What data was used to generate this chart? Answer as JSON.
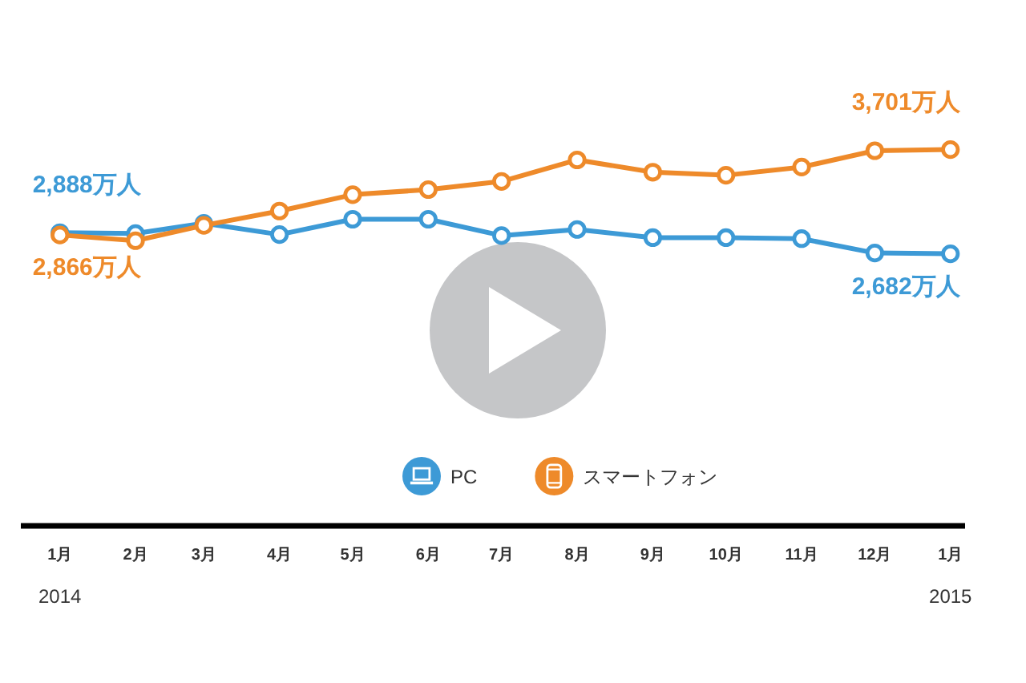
{
  "chart_data": {
    "type": "line",
    "x": [
      "2014-01",
      "2014-02",
      "2014-03",
      "2014-04",
      "2014-05",
      "2014-06",
      "2014-07",
      "2014-08",
      "2014-09",
      "2014-10",
      "2014-11",
      "2014-12",
      "2015-01"
    ],
    "xlim": [
      "2013-12-16",
      "2015-01-07"
    ],
    "xticks": [
      {
        "value": "2014-01",
        "label": "1月"
      },
      {
        "value": "2014-02",
        "label": "2月"
      },
      {
        "value": "2014-03",
        "label": "3月"
      },
      {
        "value": "2014-04",
        "label": "4月"
      },
      {
        "value": "2014-05",
        "label": "5月"
      },
      {
        "value": "2014-06",
        "label": "6月"
      },
      {
        "value": "2014-07",
        "label": "7月"
      },
      {
        "value": "2014-08",
        "label": "8月"
      },
      {
        "value": "2014-09",
        "label": "9月"
      },
      {
        "value": "2014-10",
        "label": "10月"
      },
      {
        "value": "2014-11",
        "label": "11月"
      },
      {
        "value": "2014-12",
        "label": "12月"
      },
      {
        "value": "2015-01",
        "label": "1月"
      }
    ],
    "series": [
      {
        "name": "PC",
        "color": "#3d9ad6",
        "values": [
          2888,
          2880,
          2980,
          2870,
          3020,
          3020,
          2860,
          2920,
          2840,
          2840,
          2830,
          2690,
          2682
        ],
        "value_labels": [
          "2,888万人",
          null,
          null,
          null,
          null,
          null,
          null,
          null,
          null,
          null,
          null,
          null,
          "2,682万人"
        ]
      },
      {
        "name": "スマートフォン",
        "color": "#ee8a2a",
        "values": [
          2866,
          2810,
          2960,
          3100,
          3260,
          3310,
          3390,
          3600,
          3480,
          3450,
          3530,
          3690,
          3701
        ],
        "value_labels": [
          "2,866万人",
          null,
          null,
          null,
          null,
          null,
          null,
          null,
          null,
          null,
          null,
          null,
          "3,701万人"
        ]
      }
    ],
    "annotations": [
      "2014",
      "2015"
    ],
    "marker": "circle",
    "line_style": "solid",
    "legend": "bottom",
    "grid": false
  }
}
